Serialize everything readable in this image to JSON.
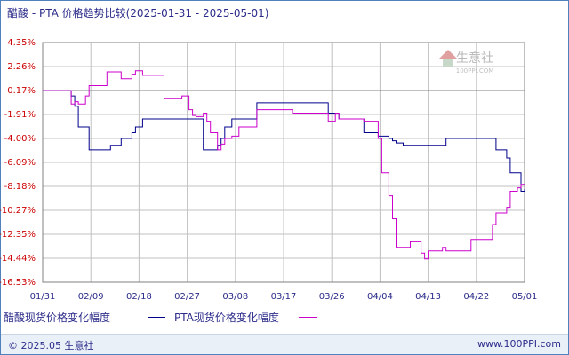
{
  "title": "醋酸 - PTA 价格趋势比较(2025-01-31 - 2025-05-01)",
  "footer": {
    "copyright": "© 2025.05 生意社",
    "site": "www.100PPI.com"
  },
  "watermark": {
    "name": "生意社",
    "url": "100PPI.COM"
  },
  "colors": {
    "series1": "#00008b",
    "series2": "#cc00cc",
    "grid": "#c0c0c0",
    "zero": "#808080",
    "ytick": "#cc0000"
  },
  "chart_data": {
    "type": "line",
    "title": "醋酸 - PTA 价格趋势比较(2025-01-31 - 2025-05-01)",
    "x_ticks": [
      "01/31",
      "02/09",
      "02/18",
      "02/27",
      "03/08",
      "03/17",
      "03/26",
      "04/04",
      "04/13",
      "04/22",
      "05/01"
    ],
    "y_ticks": [
      "4.35%",
      "2.26%",
      "0.17%",
      "-1.91%",
      "-4.00%",
      "-6.09%",
      "-8.18%",
      "-10.27%",
      "-12.35%",
      "-14.44%",
      "-16.53%"
    ],
    "ylim": [
      -16.53,
      4.35
    ],
    "grid": true,
    "legend_position": "bottom-left",
    "series": [
      {
        "name": "醋酸现货价格变化幅度",
        "color": "#00008b",
        "x": [
          0,
          6,
          7,
          8,
          9,
          10,
          12,
          13,
          16,
          18,
          19,
          22,
          23,
          25,
          26,
          27,
          28,
          29,
          34,
          35,
          39,
          41,
          42,
          43,
          45,
          46,
          47,
          49,
          50,
          51,
          53,
          55,
          60,
          70,
          80,
          82,
          83,
          90,
          94,
          95,
          97,
          98,
          99,
          100,
          101,
          103,
          106,
          107,
          108,
          109,
          111,
          112,
          113,
          120,
          125,
          126,
          127,
          129,
          130,
          131,
          133,
          134,
          135
        ],
        "y": [
          0.17,
          0.17,
          0.17,
          -0.3,
          -1.2,
          -3.0,
          -3.0,
          -5.0,
          -5.0,
          -5.0,
          -4.6,
          -4.0,
          -4.0,
          -3.5,
          -3.0,
          -3.0,
          -2.3,
          -2.3,
          -2.3,
          -2.3,
          -2.3,
          -2.3,
          -2.3,
          -2.3,
          -5.0,
          -5.0,
          -5.0,
          -4.6,
          -4.0,
          -3.0,
          -2.3,
          -2.3,
          -0.9,
          -0.9,
          -1.8,
          -1.8,
          -2.3,
          -3.5,
          -3.8,
          -3.8,
          -4.0,
          -4.2,
          -4.4,
          -4.4,
          -4.6,
          -4.6,
          -4.6,
          -4.6,
          -4.6,
          -4.6,
          -4.6,
          -4.6,
          -4.0,
          -4.0,
          -4.0,
          -4.0,
          -5.0,
          -5.0,
          -5.7,
          -7.0,
          -7.0,
          -8.6,
          -8.4
        ]
      },
      {
        "name": "PTA现货价格变化幅度",
        "color": "#cc00cc",
        "x": [
          0,
          6,
          7,
          8,
          9,
          10,
          12,
          13,
          16,
          18,
          19,
          22,
          23,
          25,
          26,
          27,
          28,
          29,
          34,
          35,
          39,
          41,
          42,
          43,
          45,
          46,
          47,
          49,
          50,
          51,
          53,
          55,
          60,
          70,
          80,
          82,
          83,
          90,
          94,
          95,
          97,
          98,
          99,
          100,
          101,
          103,
          106,
          107,
          108,
          109,
          111,
          112,
          113,
          120,
          125,
          126,
          127,
          129,
          130,
          131,
          133,
          134,
          135
        ],
        "y": [
          0.17,
          0.17,
          0.17,
          -1.0,
          -0.8,
          -1.0,
          -0.3,
          0.6,
          0.6,
          1.8,
          1.8,
          1.2,
          1.2,
          1.6,
          1.9,
          1.9,
          1.5,
          1.5,
          -0.5,
          -0.5,
          -0.3,
          -1.5,
          -2.0,
          -2.1,
          -1.8,
          -2.5,
          -3.5,
          -5.0,
          -4.5,
          -4.0,
          -3.8,
          -3.0,
          -1.5,
          -1.8,
          -2.5,
          -1.8,
          -2.3,
          -2.5,
          -4.0,
          -7.0,
          -9.0,
          -11.0,
          -13.5,
          -13.5,
          -13.5,
          -13.0,
          -14.0,
          -14.5,
          -13.8,
          -13.8,
          -13.8,
          -13.5,
          -13.8,
          -12.8,
          -12.8,
          -11.5,
          -10.5,
          -10.5,
          -10.0,
          -8.6,
          -8.3,
          -8.0,
          -8.0
        ]
      }
    ]
  }
}
